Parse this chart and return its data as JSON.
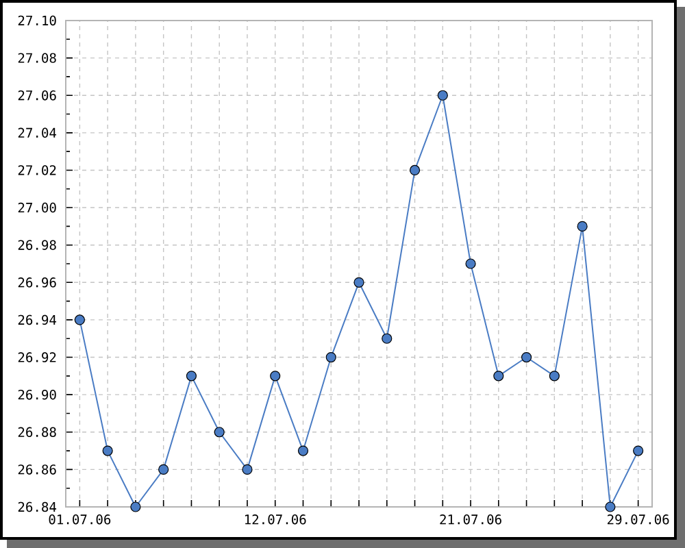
{
  "chart_data": {
    "type": "line",
    "categories": [
      "01.07.06",
      null,
      null,
      null,
      null,
      null,
      null,
      "12.07.06",
      null,
      null,
      null,
      null,
      null,
      null,
      "21.07.06",
      null,
      null,
      null,
      null,
      null,
      "29.07.06"
    ],
    "values": [
      26.94,
      26.87,
      26.84,
      26.86,
      26.91,
      26.88,
      26.86,
      26.91,
      26.87,
      26.92,
      26.96,
      26.93,
      27.02,
      27.06,
      26.97,
      26.91,
      26.92,
      26.91,
      26.99,
      26.84,
      26.87
    ],
    "color": "#4a7cc4",
    "ylim": [
      26.84,
      27.1
    ],
    "yticks": [
      26.84,
      26.86,
      26.88,
      {
        "value": 26.9,
        "label": "26.90"
      },
      26.92,
      26.94,
      26.96,
      26.98,
      {
        "value": 27.0,
        "label": "27.00"
      },
      27.02,
      27.04,
      27.06,
      27.08,
      {
        "value": 27.1,
        "label": "27.10"
      }
    ],
    "grid": true,
    "marker": "circle",
    "line_style": "solid"
  }
}
